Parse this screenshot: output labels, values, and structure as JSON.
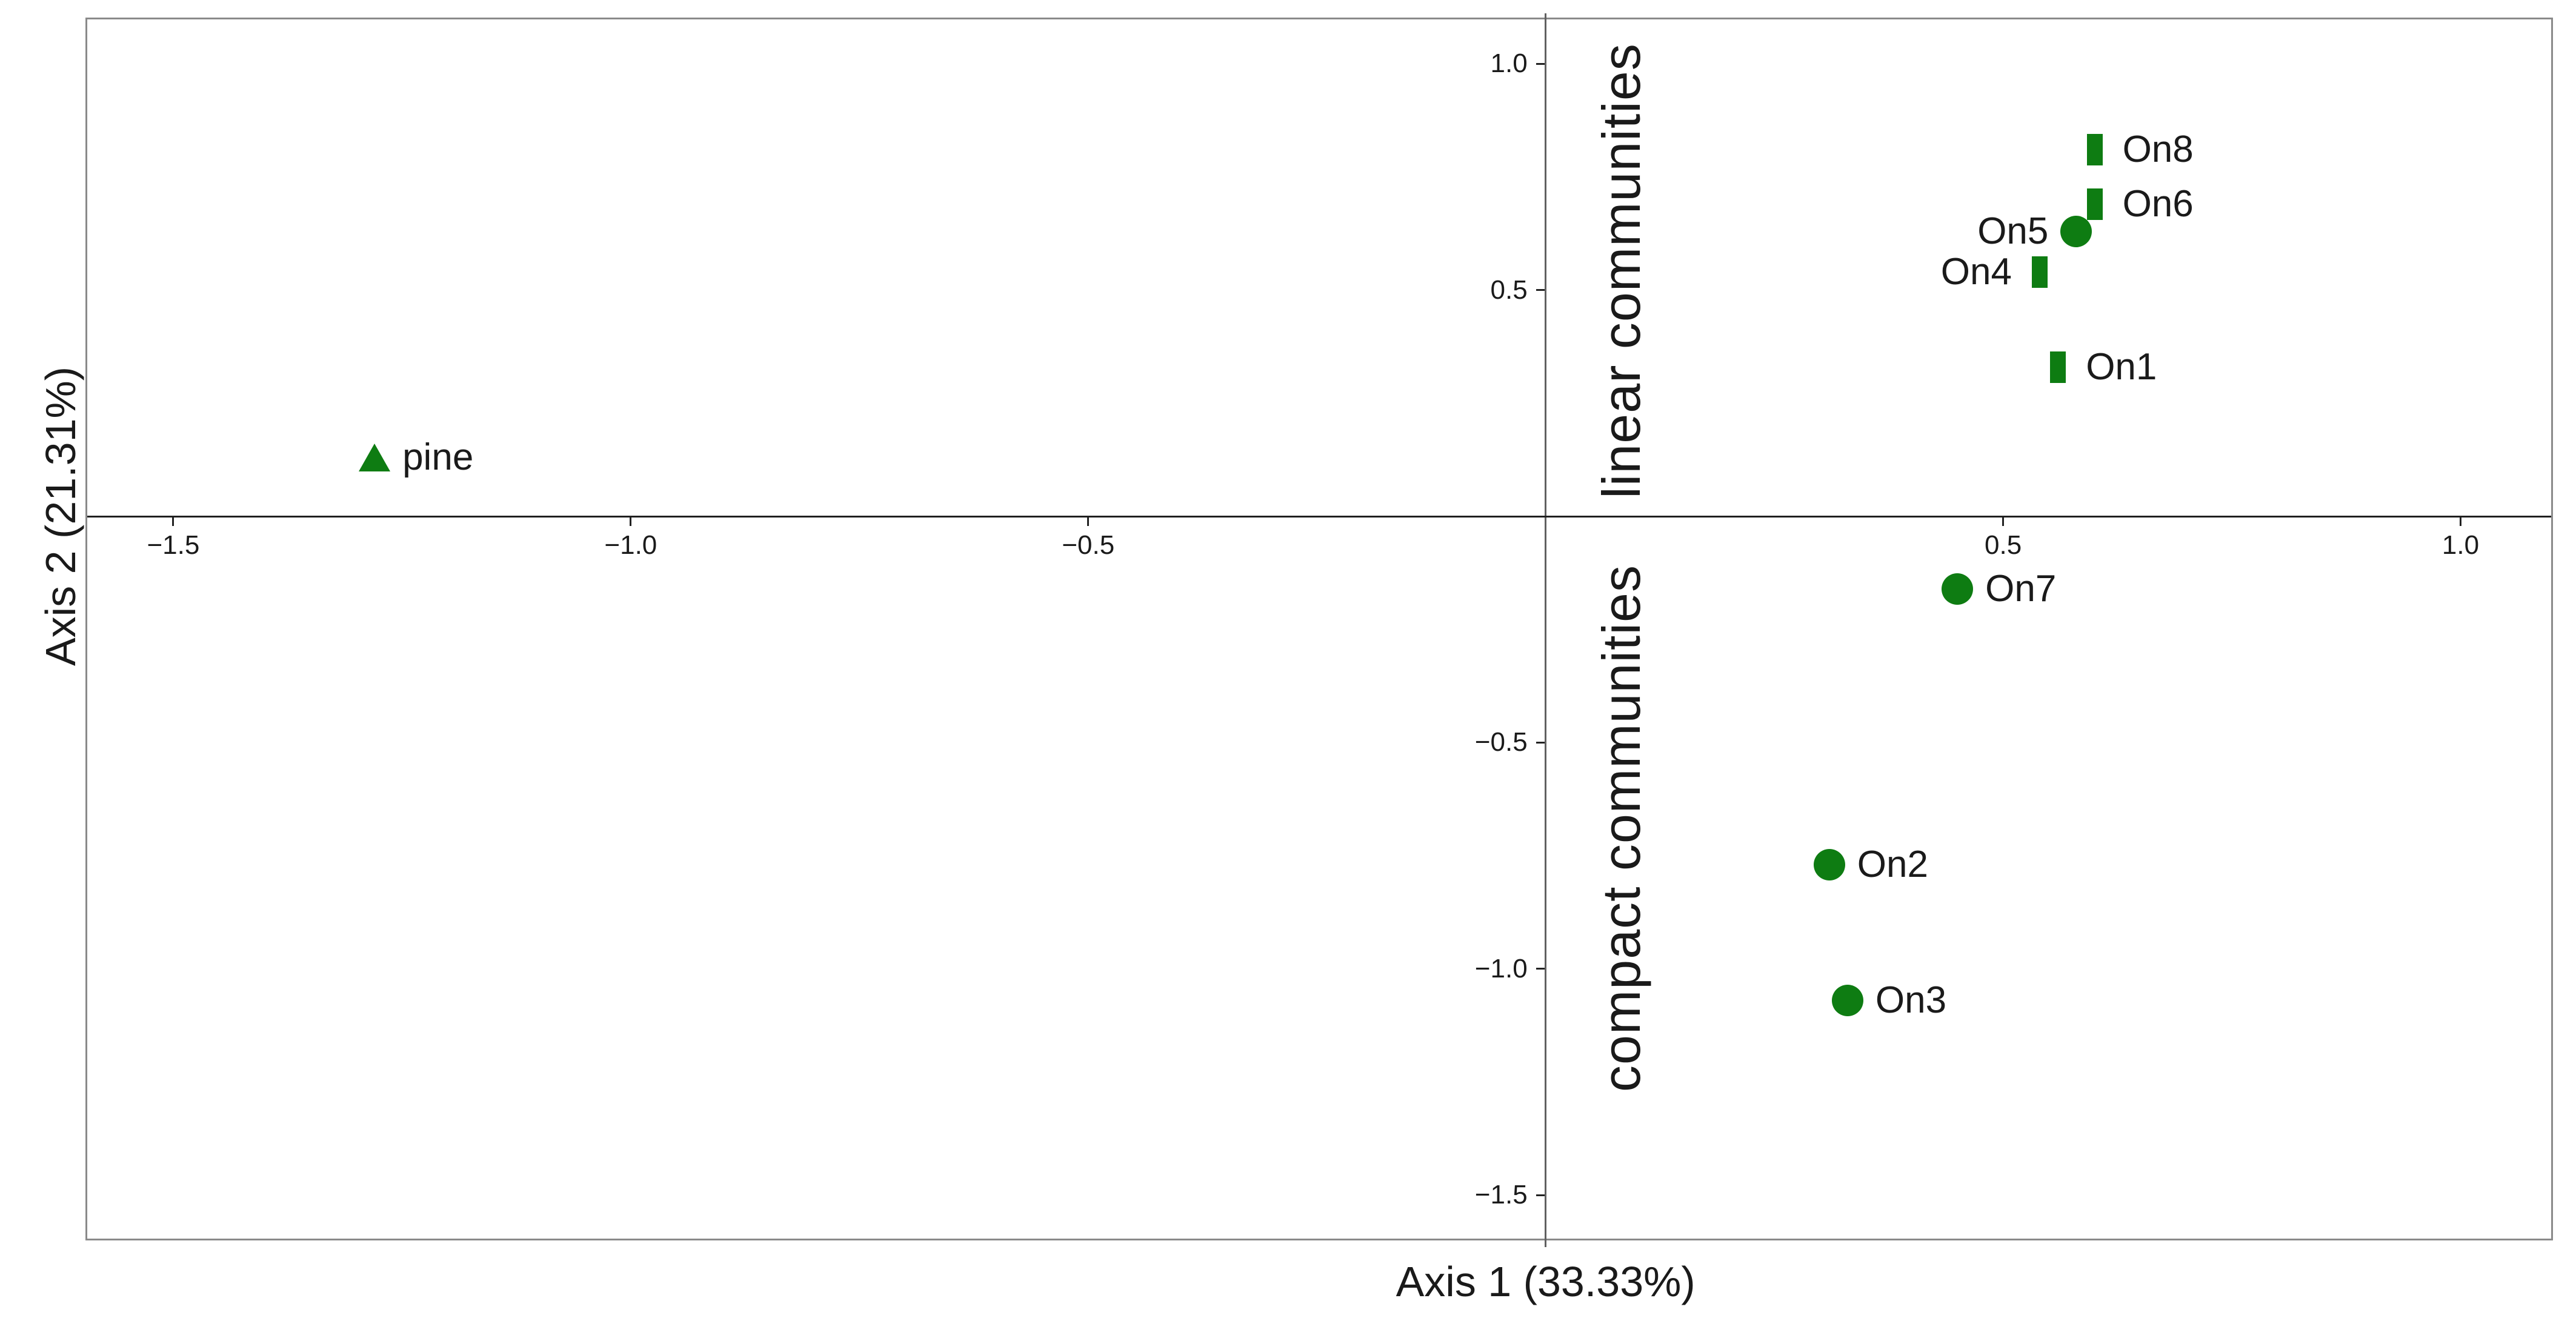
{
  "colors": {
    "marker": "#0E7C12",
    "text": "#1a1a1a",
    "box_border": "#8a8a8a",
    "x_axis_line": "#1f1f1f",
    "y_axis_line": "#606060"
  },
  "chart_data": {
    "type": "scatter",
    "title": "",
    "xlabel": "Axis 1 (33.33%)",
    "ylabel": "Axis 2 (21.31%)",
    "xlim": [
      -1.594,
      1.099
    ],
    "ylim": [
      -1.596,
      1.098
    ],
    "grid": false,
    "legend": "none",
    "axes_cross_at": [
      0,
      0
    ],
    "x_ticks": [
      {
        "value": -1.5,
        "label": "−1.5"
      },
      {
        "value": -1.0,
        "label": "−1.0"
      },
      {
        "value": -0.5,
        "label": "−0.5"
      },
      {
        "value": 0.5,
        "label": "0.5"
      },
      {
        "value": 1.0,
        "label": "1.0"
      }
    ],
    "y_ticks": [
      {
        "value": 1.0,
        "label": "1.0"
      },
      {
        "value": 0.5,
        "label": "0.5"
      },
      {
        "value": -0.5,
        "label": "−0.5"
      },
      {
        "value": -1.0,
        "label": "−1.0"
      },
      {
        "value": -1.5,
        "label": "−1.5"
      }
    ],
    "points": [
      {
        "label": "On8",
        "x": 0.6,
        "y": 0.81,
        "marker": "square",
        "label_side": "right"
      },
      {
        "label": "On6",
        "x": 0.6,
        "y": 0.69,
        "marker": "square",
        "label_side": "right"
      },
      {
        "label": "On5",
        "x": 0.58,
        "y": 0.63,
        "marker": "circle",
        "label_side": "left"
      },
      {
        "label": "On4",
        "x": 0.54,
        "y": 0.54,
        "marker": "square",
        "label_side": "left"
      },
      {
        "label": "On1",
        "x": 0.56,
        "y": 0.33,
        "marker": "square",
        "label_side": "right"
      },
      {
        "label": "On7",
        "x": 0.45,
        "y": -0.16,
        "marker": "circle",
        "label_side": "right"
      },
      {
        "label": "On2",
        "x": 0.31,
        "y": -0.77,
        "marker": "circle",
        "label_side": "right"
      },
      {
        "label": "On3",
        "x": 0.33,
        "y": -1.07,
        "marker": "circle",
        "label_side": "right"
      },
      {
        "label": "pine",
        "x": -1.28,
        "y": 0.13,
        "marker": "triangle",
        "label_side": "right"
      }
    ],
    "annotations": [
      {
        "text": "linear communities",
        "x": 0.083,
        "y": 0.542,
        "rotation": -90
      },
      {
        "text": "compact communities",
        "x": 0.083,
        "y": -0.689,
        "rotation": -90
      }
    ]
  }
}
